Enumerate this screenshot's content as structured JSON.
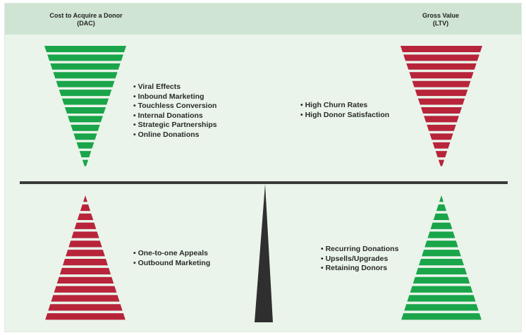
{
  "header": {
    "left_title_line1": "Cost to Acquire a Donor",
    "left_title_line2": "(DAC)",
    "right_title_line1": "Gross Value",
    "right_title_line2": "(LTV)"
  },
  "colors": {
    "green": "#1aa54a",
    "red": "#b8243a",
    "fulcrum": "#2f2f2f",
    "beam": "#3a3a3a"
  },
  "quadrants": {
    "top_left": {
      "shape": "inverted-triangle",
      "color": "green",
      "items": [
        "Viral Effects",
        "Inbound Marketing",
        "Touchless Conversion",
        "Internal Donations",
        "Strategic Partnerships",
        "Online Donations"
      ]
    },
    "top_right": {
      "shape": "inverted-triangle",
      "color": "red",
      "items": [
        "High Churn Rates",
        "High Donor Satisfaction"
      ]
    },
    "bottom_left": {
      "shape": "upright-triangle",
      "color": "red",
      "items": [
        "One-to-one Appeals",
        "Outbound Marketing"
      ]
    },
    "bottom_right": {
      "shape": "upright-triangle",
      "color": "green",
      "items": [
        "Recurring Donations",
        "Upsells/Upgrades",
        "Retaining Donors"
      ]
    }
  }
}
